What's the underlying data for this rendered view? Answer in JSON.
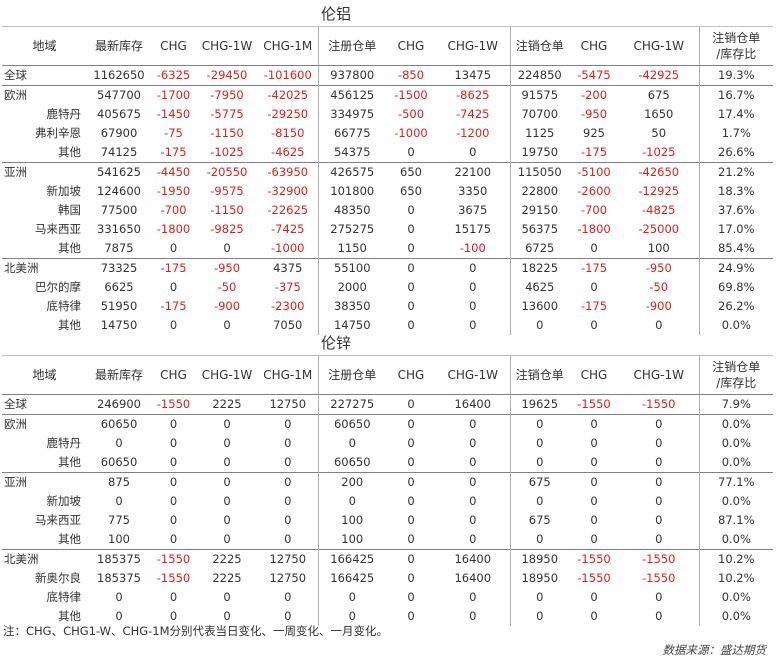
{
  "headers": [
    "地域",
    "最新库存",
    "CHG",
    "CHG-1W",
    "CHG-1M",
    "注册仓单",
    "CHG",
    "CHG-1W",
    "注销仓单",
    "CHG",
    "CHG-1W",
    "注销仓单\n/库存比"
  ],
  "sections": [
    {
      "title": "伦铝",
      "groups": [
        [
          [
            "全球",
            "1162650",
            "-6325",
            "-29450",
            "-101600",
            "937800",
            "-850",
            "13475",
            "224850",
            "-5475",
            "-42925",
            "19.3%"
          ]
        ],
        [
          [
            "欧洲",
            "547700",
            "-1700",
            "-7950",
            "-42025",
            "456125",
            "-1500",
            "-8625",
            "91575",
            "-200",
            "675",
            "16.7%"
          ],
          [
            "鹿特丹",
            "405675",
            "-1450",
            "-5775",
            "-29250",
            "334975",
            "-500",
            "-7425",
            "70700",
            "-950",
            "1650",
            "17.4%"
          ],
          [
            "弗利辛恩",
            "67900",
            "-75",
            "-1150",
            "-8150",
            "66775",
            "-1000",
            "-1200",
            "1125",
            "925",
            "50",
            "1.7%"
          ],
          [
            "其他",
            "74125",
            "-175",
            "-1025",
            "-4625",
            "54375",
            "0",
            "0",
            "19750",
            "-175",
            "-1025",
            "26.6%"
          ]
        ],
        [
          [
            "亚洲",
            "541625",
            "-4450",
            "-20550",
            "-63950",
            "426575",
            "650",
            "22100",
            "115050",
            "-5100",
            "-42650",
            "21.2%"
          ],
          [
            "新加坡",
            "124600",
            "-1950",
            "-9575",
            "-32900",
            "101800",
            "650",
            "3350",
            "22800",
            "-2600",
            "-12925",
            "18.3%"
          ],
          [
            "韩国",
            "77500",
            "-700",
            "-1150",
            "-22625",
            "48350",
            "0",
            "3675",
            "29150",
            "-700",
            "-4825",
            "37.6%"
          ],
          [
            "马来西亚",
            "331650",
            "-1800",
            "-9825",
            "-7425",
            "275275",
            "0",
            "15175",
            "56375",
            "-1800",
            "-25000",
            "17.0%"
          ],
          [
            "其他",
            "7875",
            "0",
            "0",
            "-1000",
            "1150",
            "0",
            "-100",
            "6725",
            "0",
            "100",
            "85.4%"
          ]
        ],
        [
          [
            "北美洲",
            "73325",
            "-175",
            "-950",
            "4375",
            "55100",
            "0",
            "0",
            "18225",
            "-175",
            "-950",
            "24.9%"
          ],
          [
            "巴尔的摩",
            "6625",
            "0",
            "-50",
            "-375",
            "2000",
            "0",
            "0",
            "4625",
            "0",
            "-50",
            "69.8%"
          ],
          [
            "底特律",
            "51950",
            "-175",
            "-900",
            "-2300",
            "38350",
            "0",
            "0",
            "13600",
            "-175",
            "-900",
            "26.2%"
          ],
          [
            "其他",
            "14750",
            "0",
            "0",
            "7050",
            "14750",
            "0",
            "0",
            "0",
            "0",
            "0",
            "0.0%"
          ]
        ]
      ]
    },
    {
      "title": "伦锌",
      "groups": [
        [
          [
            "全球",
            "246900",
            "-1550",
            "2225",
            "12750",
            "227275",
            "0",
            "16400",
            "19625",
            "-1550",
            "-1550",
            "7.9%"
          ]
        ],
        [
          [
            "欧洲",
            "60650",
            "0",
            "0",
            "0",
            "60650",
            "0",
            "0",
            "0",
            "0",
            "0",
            "0.0%"
          ],
          [
            "鹿特丹",
            "0",
            "0",
            "0",
            "0",
            "0",
            "0",
            "0",
            "0",
            "0",
            "0",
            "0.0%"
          ],
          [
            "其他",
            "60650",
            "0",
            "0",
            "0",
            "60650",
            "0",
            "0",
            "0",
            "0",
            "0",
            "0.0%"
          ]
        ],
        [
          [
            "亚洲",
            "875",
            "0",
            "0",
            "0",
            "200",
            "0",
            "0",
            "675",
            "0",
            "0",
            "77.1%"
          ],
          [
            "新加坡",
            "0",
            "0",
            "0",
            "0",
            "0",
            "0",
            "0",
            "0",
            "0",
            "0",
            "0.0%"
          ],
          [
            "马来西亚",
            "775",
            "0",
            "0",
            "0",
            "100",
            "0",
            "0",
            "675",
            "0",
            "0",
            "87.1%"
          ],
          [
            "其他",
            "100",
            "0",
            "0",
            "0",
            "100",
            "0",
            "0",
            "0",
            "0",
            "0",
            "0.0%"
          ]
        ],
        [
          [
            "北美洲",
            "185375",
            "-1550",
            "2225",
            "12750",
            "166425",
            "0",
            "16400",
            "18950",
            "-1550",
            "-1550",
            "10.2%"
          ],
          [
            "新奥尔良",
            "185375",
            "-1550",
            "2225",
            "12750",
            "166425",
            "0",
            "16400",
            "18950",
            "-1550",
            "-1550",
            "10.2%"
          ],
          [
            "底特律",
            "0",
            "0",
            "0",
            "0",
            "0",
            "0",
            "0",
            "0",
            "0",
            "0",
            "0.0%"
          ],
          [
            "其他",
            "0",
            "0",
            "0",
            "0",
            "0",
            "0",
            "0",
            "0",
            "0",
            "0",
            "0.0%"
          ]
        ]
      ]
    }
  ],
  "note": "注：CHG、CHG1-W、CHG-1M分别代表当日变化、一周变化、一月变化。",
  "source": "数据来源：盛达期货",
  "colors": {
    "negative": "#e0201b",
    "text": "#333333"
  }
}
